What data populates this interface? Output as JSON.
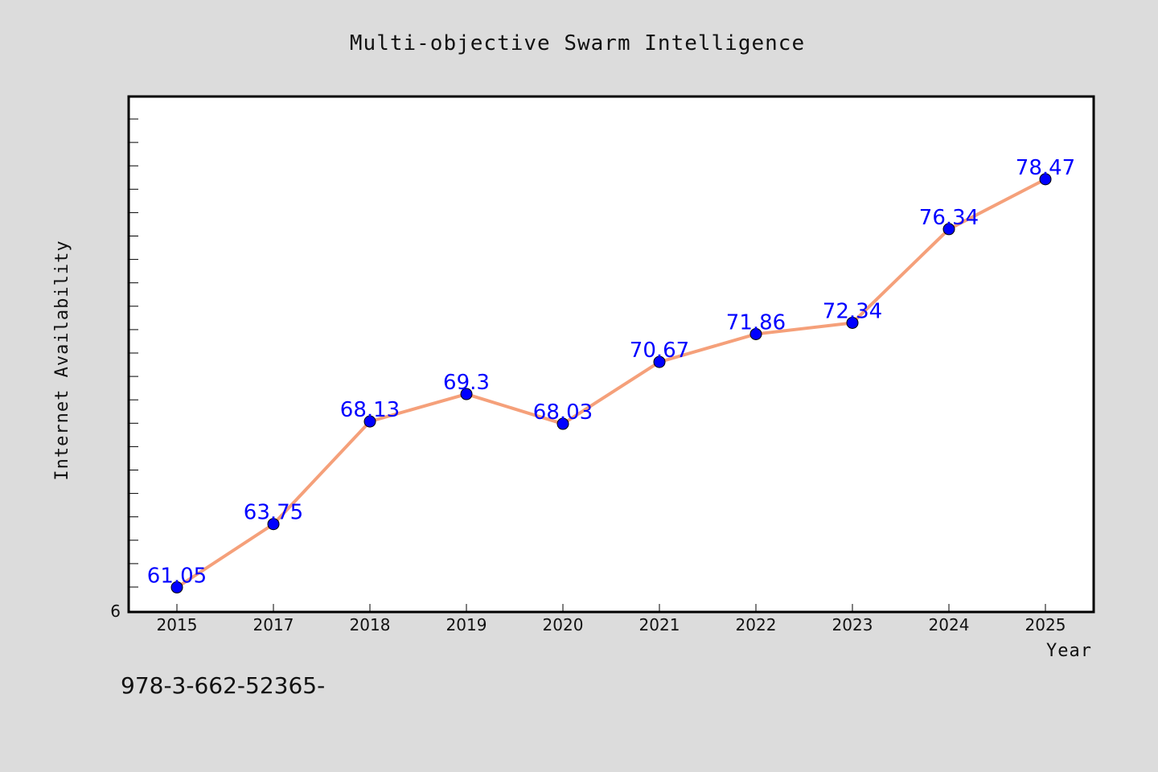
{
  "chart_data": {
    "type": "line",
    "title": "Multi-objective Swarm Intelligence",
    "xlabel": "Year",
    "ylabel": "Internet Availability",
    "categories": [
      "2015",
      "2017",
      "2018",
      "2019",
      "2020",
      "2021",
      "2022",
      "2023",
      "2024",
      "2025"
    ],
    "series": [
      {
        "values": [
          61.05,
          63.75,
          68.13,
          69.3,
          68.03,
          70.67,
          71.86,
          72.34,
          76.34,
          78.47
        ],
        "labels": [
          "61.05",
          "63.75",
          "68.13",
          "69.3",
          "68.03",
          "70.67",
          "71.86",
          "72.34",
          "76.34",
          "78.47"
        ],
        "line_color": "#f5a07a",
        "marker_color": "#0000ff"
      }
    ],
    "ylim": [
      60,
      82
    ],
    "y_tick_label": "6",
    "grid": false,
    "annotation": "978-3-662-52365-"
  }
}
